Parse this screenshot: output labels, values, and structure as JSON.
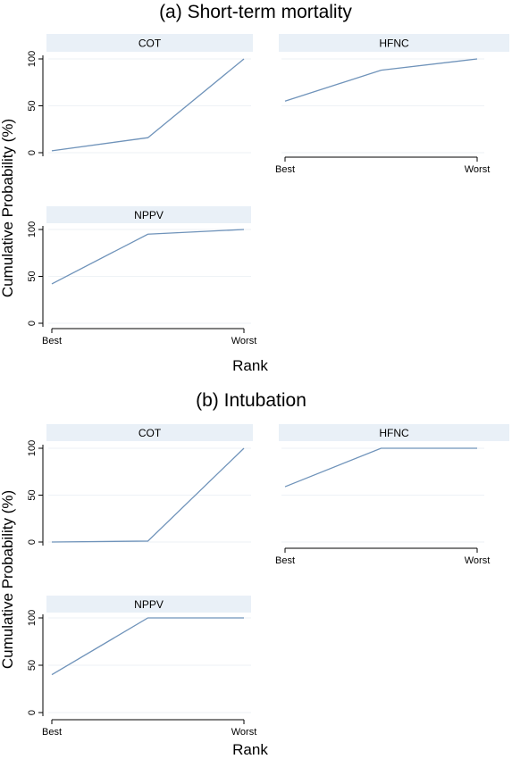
{
  "colors": {
    "line": "#6f93ba",
    "strip": "#e9f0f7",
    "grid": "#eef2f6",
    "axis": "#000000"
  },
  "chart_data": [
    {
      "type": "line",
      "title": "(a) Short-term mortality",
      "ylabel": "Cumulative Probability (%)",
      "xlabel": "Rank",
      "ylim": [
        0,
        100
      ],
      "yticks": [
        0,
        50,
        100
      ],
      "x_tick_labels": [
        "Best",
        "Worst"
      ],
      "grid": true,
      "panels": [
        {
          "name": "COT",
          "x": [
            1,
            2,
            3
          ],
          "values": [
            2,
            16,
            100
          ]
        },
        {
          "name": "HFNC",
          "x": [
            1,
            2,
            3
          ],
          "values": [
            55,
            88,
            100
          ]
        },
        {
          "name": "NPPV",
          "x": [
            1,
            2,
            3
          ],
          "values": [
            42,
            95,
            100
          ]
        }
      ]
    },
    {
      "type": "line",
      "title": "(b) Intubation",
      "ylabel": "Cumulative Probability (%)",
      "xlabel": "Rank",
      "ylim": [
        0,
        100
      ],
      "yticks": [
        0,
        50,
        100
      ],
      "x_tick_labels": [
        "Best",
        "Worst"
      ],
      "grid": true,
      "panels": [
        {
          "name": "COT",
          "x": [
            1,
            2,
            3
          ],
          "values": [
            0,
            1,
            100
          ]
        },
        {
          "name": "HFNC",
          "x": [
            1,
            2,
            3
          ],
          "values": [
            59,
            100,
            100
          ]
        },
        {
          "name": "NPPV",
          "x": [
            1,
            2,
            3
          ],
          "values": [
            40,
            100,
            100
          ]
        }
      ]
    }
  ]
}
